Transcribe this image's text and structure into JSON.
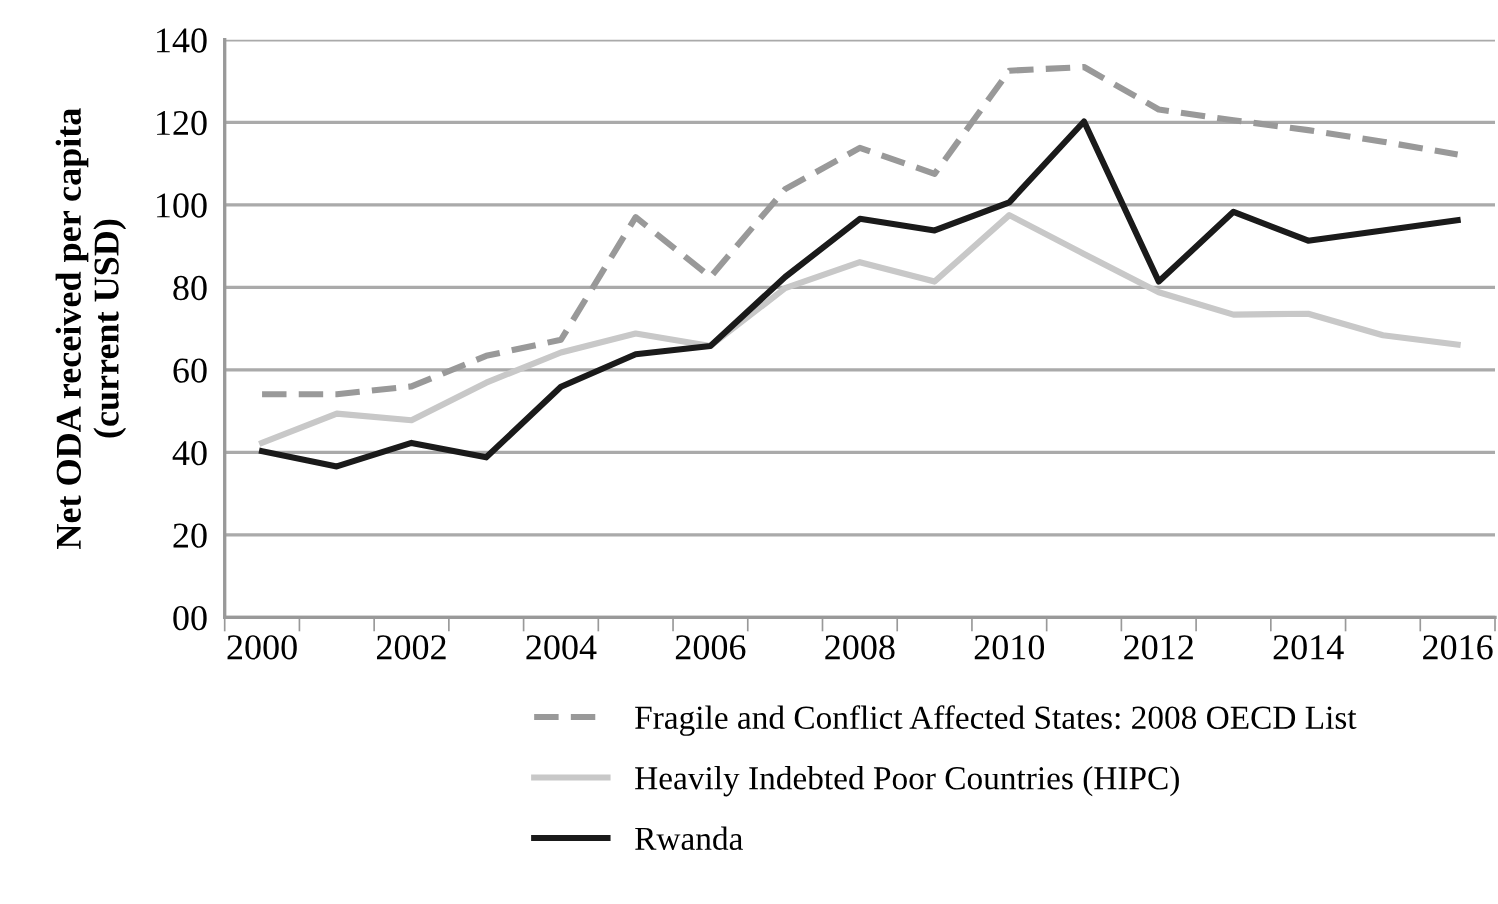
{
  "chart_data": {
    "type": "line",
    "ylabel": "Net ODA received per capita\n(current USD)",
    "categories": [
      "2000",
      null,
      "2002",
      null,
      "2004",
      null,
      "2006",
      null,
      "2008",
      null,
      "2010",
      null,
      "2012",
      null,
      "2014",
      null,
      "2016"
    ],
    "series": [
      {
        "name": "Fragile and Conflict Affected States: 2008 OECD List",
        "color": "#999999",
        "line_style": "dashed",
        "values": [
          54.1,
          54.1,
          56,
          63.4,
          67.3,
          97,
          82.5,
          103.8,
          113.8,
          107.5,
          132.5,
          133.4,
          123.1,
          120.5,
          118.1,
          115.3,
          112.2
        ]
      },
      {
        "name": "Heavily Indebted Poor Countries (HIPC)",
        "color": "#c8c8c8",
        "line_style": "solid",
        "values": [
          42.3,
          49.4,
          47.8,
          56.9,
          64.2,
          68.8,
          65.8,
          79.8,
          86.1,
          81.4,
          97.5,
          88.1,
          78.8,
          73.4,
          73.6,
          68.4,
          66.1
        ]
      },
      {
        "name": "Rwanda",
        "color": "#1a1a1a",
        "line_style": "solid",
        "values": [
          40.3,
          36.6,
          42.3,
          38.8,
          55.9,
          63.8,
          65.8,
          82.5,
          96.6,
          93.8,
          100.6,
          120.2,
          81.4,
          98.3,
          91.3,
          93.8,
          96.3
        ]
      }
    ],
    "ylim": [
      0,
      140
    ],
    "yticks": [
      {
        "value": 0,
        "label": "00"
      },
      20,
      40,
      60,
      80,
      100,
      120,
      140
    ],
    "grid": "y",
    "legend": "bottom",
    "marker": "none"
  }
}
